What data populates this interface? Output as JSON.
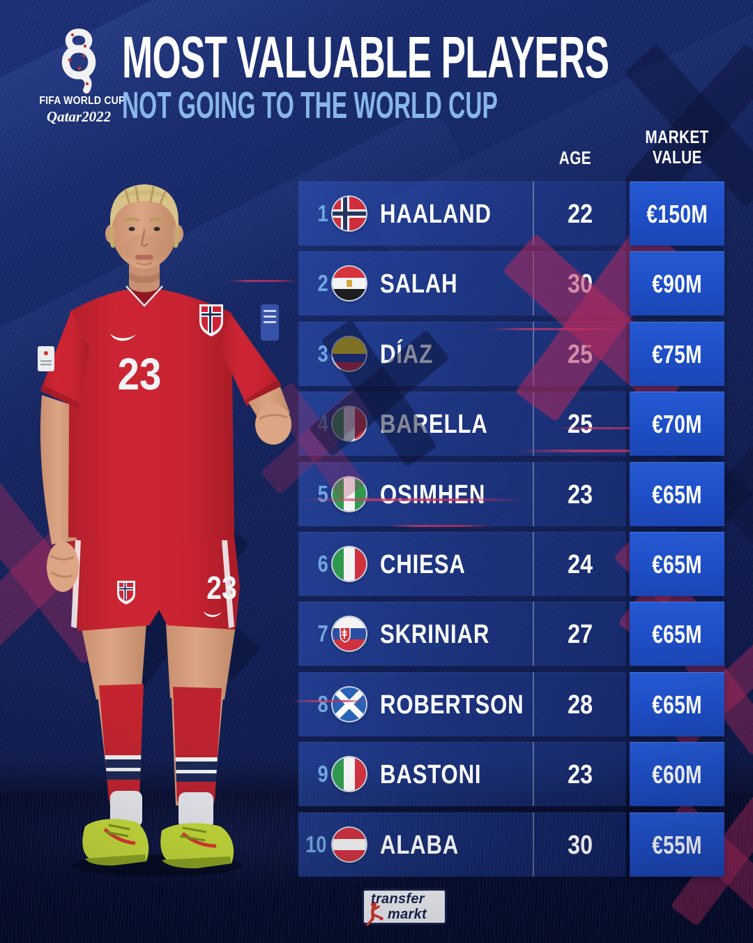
{
  "brand": {
    "fifa_line1": "FIFA WORLD CUP",
    "fifa_line2": "Qatar2022"
  },
  "header": {
    "title": "MOST VALUABLE PLAYERS",
    "subtitle": "NOT GOING TO THE WORLD CUP"
  },
  "columns": {
    "age": "AGE",
    "market_value_line1": "MARKET",
    "market_value_line2": "VALUE"
  },
  "rows": [
    {
      "rank": "1",
      "country": "Norway",
      "flag": "norway",
      "name": "HAALAND",
      "age": "22",
      "value": "€150M"
    },
    {
      "rank": "2",
      "country": "Egypt",
      "flag": "egypt",
      "name": "SALAH",
      "age": "30",
      "value": "€90M"
    },
    {
      "rank": "3",
      "country": "Colombia",
      "flag": "colombia",
      "name": "DÍAZ",
      "age": "25",
      "value": "€75M"
    },
    {
      "rank": "4",
      "country": "Italy",
      "flag": "italy",
      "name": "BARELLA",
      "age": "25",
      "value": "€70M"
    },
    {
      "rank": "5",
      "country": "Nigeria",
      "flag": "nigeria",
      "name": "OSIMHEN",
      "age": "23",
      "value": "€65M"
    },
    {
      "rank": "6",
      "country": "Italy",
      "flag": "italy",
      "name": "CHIESA",
      "age": "24",
      "value": "€65M"
    },
    {
      "rank": "7",
      "country": "Slovakia",
      "flag": "slovakia",
      "name": "SKRINIAR",
      "age": "27",
      "value": "€65M"
    },
    {
      "rank": "8",
      "country": "Scotland",
      "flag": "scotland",
      "name": "ROBERTSON",
      "age": "28",
      "value": "€65M"
    },
    {
      "rank": "9",
      "country": "Italy",
      "flag": "italy",
      "name": "BASTONI",
      "age": "23",
      "value": "€60M"
    },
    {
      "rank": "10",
      "country": "Austria",
      "flag": "austria",
      "name": "ALABA",
      "age": "30",
      "value": "€55M"
    }
  ],
  "player": {
    "chest_number": "23",
    "shorts_number": "23"
  },
  "footer": {
    "brand_top": "transfer",
    "brand_bottom": "markt"
  },
  "colors": {
    "accent_value_blue": "#1e4ec6",
    "row_strip_blue": "#24489f",
    "subtitle_light_blue": "#88b7ea",
    "rank_light_blue": "#72a7e0",
    "crimson_x": "#b92e5c",
    "jersey_red": "#c8232f",
    "boot_neon": "#cde23c"
  }
}
